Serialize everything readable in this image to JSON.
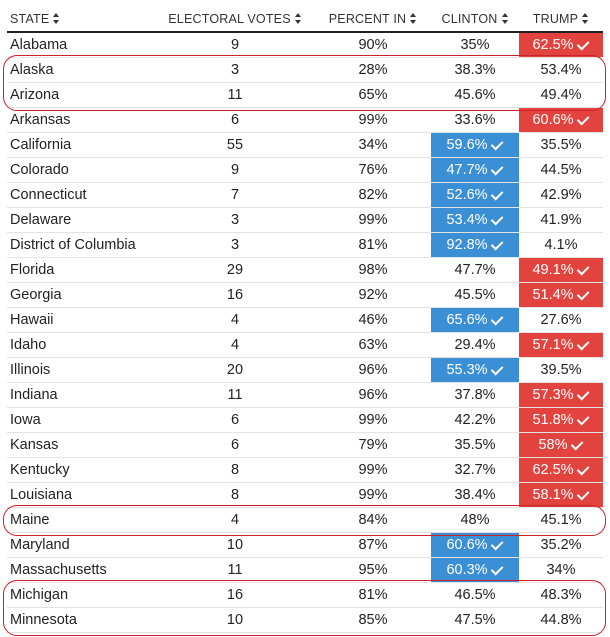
{
  "headers": {
    "state": "STATE",
    "electoral_votes": "ELECTORAL VOTES",
    "percent_in": "PERCENT IN",
    "clinton": "CLINTON",
    "trump": "TRUMP"
  },
  "colors": {
    "clinton_win": "#3b8fd4",
    "trump_win": "#e3433f",
    "highlight": "#d0202a"
  },
  "highlighted_rows": [
    "Alaska",
    "Arizona",
    "Maine",
    "Michigan",
    "Minnesota"
  ],
  "rows": [
    {
      "state": "Alabama",
      "ev": "9",
      "pct": "90%",
      "clinton": "35%",
      "trump": "62.5%",
      "winner": "trump"
    },
    {
      "state": "Alaska",
      "ev": "3",
      "pct": "28%",
      "clinton": "38.3%",
      "trump": "53.4%",
      "winner": ""
    },
    {
      "state": "Arizona",
      "ev": "11",
      "pct": "65%",
      "clinton": "45.6%",
      "trump": "49.4%",
      "winner": ""
    },
    {
      "state": "Arkansas",
      "ev": "6",
      "pct": "99%",
      "clinton": "33.6%",
      "trump": "60.6%",
      "winner": "trump"
    },
    {
      "state": "California",
      "ev": "55",
      "pct": "34%",
      "clinton": "59.6%",
      "trump": "35.5%",
      "winner": "clinton"
    },
    {
      "state": "Colorado",
      "ev": "9",
      "pct": "76%",
      "clinton": "47.7%",
      "trump": "44.5%",
      "winner": "clinton"
    },
    {
      "state": "Connecticut",
      "ev": "7",
      "pct": "82%",
      "clinton": "52.6%",
      "trump": "42.9%",
      "winner": "clinton"
    },
    {
      "state": "Delaware",
      "ev": "3",
      "pct": "99%",
      "clinton": "53.4%",
      "trump": "41.9%",
      "winner": "clinton"
    },
    {
      "state": "District of Columbia",
      "ev": "3",
      "pct": "81%",
      "clinton": "92.8%",
      "trump": "4.1%",
      "winner": "clinton"
    },
    {
      "state": "Florida",
      "ev": "29",
      "pct": "98%",
      "clinton": "47.7%",
      "trump": "49.1%",
      "winner": "trump"
    },
    {
      "state": "Georgia",
      "ev": "16",
      "pct": "92%",
      "clinton": "45.5%",
      "trump": "51.4%",
      "winner": "trump"
    },
    {
      "state": "Hawaii",
      "ev": "4",
      "pct": "46%",
      "clinton": "65.6%",
      "trump": "27.6%",
      "winner": "clinton"
    },
    {
      "state": "Idaho",
      "ev": "4",
      "pct": "63%",
      "clinton": "29.4%",
      "trump": "57.1%",
      "winner": "trump"
    },
    {
      "state": "Illinois",
      "ev": "20",
      "pct": "96%",
      "clinton": "55.3%",
      "trump": "39.5%",
      "winner": "clinton"
    },
    {
      "state": "Indiana",
      "ev": "11",
      "pct": "96%",
      "clinton": "37.8%",
      "trump": "57.3%",
      "winner": "trump"
    },
    {
      "state": "Iowa",
      "ev": "6",
      "pct": "99%",
      "clinton": "42.2%",
      "trump": "51.8%",
      "winner": "trump"
    },
    {
      "state": "Kansas",
      "ev": "6",
      "pct": "79%",
      "clinton": "35.5%",
      "trump": "58%",
      "winner": "trump"
    },
    {
      "state": "Kentucky",
      "ev": "8",
      "pct": "99%",
      "clinton": "32.7%",
      "trump": "62.5%",
      "winner": "trump"
    },
    {
      "state": "Louisiana",
      "ev": "8",
      "pct": "99%",
      "clinton": "38.4%",
      "trump": "58.1%",
      "winner": "trump"
    },
    {
      "state": "Maine",
      "ev": "4",
      "pct": "84%",
      "clinton": "48%",
      "trump": "45.1%",
      "winner": ""
    },
    {
      "state": "Maryland",
      "ev": "10",
      "pct": "87%",
      "clinton": "60.6%",
      "trump": "35.2%",
      "winner": "clinton"
    },
    {
      "state": "Massachusetts",
      "ev": "11",
      "pct": "95%",
      "clinton": "60.3%",
      "trump": "34%",
      "winner": "clinton"
    },
    {
      "state": "Michigan",
      "ev": "16",
      "pct": "81%",
      "clinton": "46.5%",
      "trump": "48.3%",
      "winner": ""
    },
    {
      "state": "Minnesota",
      "ev": "10",
      "pct": "85%",
      "clinton": "47.5%",
      "trump": "44.8%",
      "winner": ""
    }
  ]
}
